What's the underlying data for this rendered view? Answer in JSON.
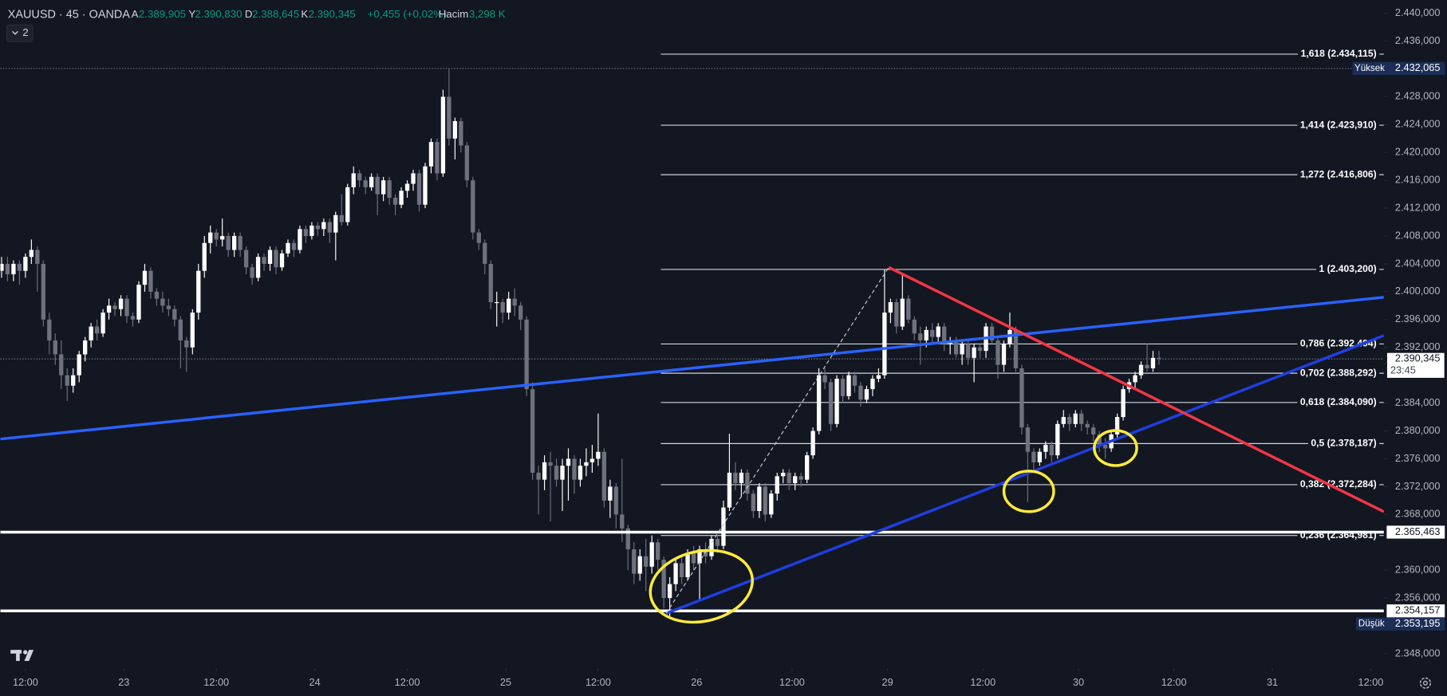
{
  "header": {
    "symbol": "XAUUSD · 45 · OANDA",
    "o_label": "A",
    "o": "2.389,905",
    "h_label": "Y",
    "h": "2.390,830",
    "l_label": "D",
    "l": "2.388,645",
    "c_label": "K",
    "c": "2.390,345",
    "change": "+0,455 (+0,02%)",
    "volume_label": "Hacim",
    "volume": "3,298 K",
    "indicators": "2"
  },
  "chart_data": {
    "type": "candlestick",
    "up_color": "#ffffff",
    "down_color": "#6f727d",
    "xlim": [
      -0.2,
      231.7
    ],
    "ylim": [
      2345.9,
      2441.9
    ],
    "grid": false,
    "xticks": [
      {
        "value": 4,
        "label": "12:00"
      },
      {
        "value": 20.5,
        "label": "23"
      },
      {
        "value": 36,
        "label": "12:00"
      },
      {
        "value": 52.5,
        "label": "24"
      },
      {
        "value": 68,
        "label": "12:00"
      },
      {
        "value": 84.5,
        "label": "25"
      },
      {
        "value": 100,
        "label": "12:00"
      },
      {
        "value": 116.5,
        "label": "26"
      },
      {
        "value": 132.5,
        "label": "12:00"
      },
      {
        "value": 148.5,
        "label": "29"
      },
      {
        "value": 164.5,
        "label": "12:00"
      },
      {
        "value": 180.5,
        "label": "30"
      },
      {
        "value": 196.5,
        "label": "12:00"
      },
      {
        "value": 213,
        "label": "31"
      },
      {
        "value": 229.5,
        "label": "12:00"
      }
    ],
    "yticks": [
      {
        "value": 2440,
        "label": "2.440,000"
      },
      {
        "value": 2436,
        "label": "2.436,000"
      },
      {
        "value": 2428,
        "label": "2.428,000"
      },
      {
        "value": 2424,
        "label": "2.424,000"
      },
      {
        "value": 2420,
        "label": "2.420,000"
      },
      {
        "value": 2416,
        "label": "2.416,000"
      },
      {
        "value": 2412,
        "label": "2.412,000"
      },
      {
        "value": 2408,
        "label": "2.408,000"
      },
      {
        "value": 2404,
        "label": "2.404,000"
      },
      {
        "value": 2400,
        "label": "2.400,000"
      },
      {
        "value": 2396,
        "label": "2.396,000"
      },
      {
        "value": 2392,
        "label": "2.392,000"
      },
      {
        "value": 2384,
        "label": "2.384,000"
      },
      {
        "value": 2380,
        "label": "2.380,000"
      },
      {
        "value": 2376,
        "label": "2.376,000"
      },
      {
        "value": 2372,
        "label": "2.372,000"
      },
      {
        "value": 2368,
        "label": "2.368,000"
      },
      {
        "value": 2360,
        "label": "2.360,000"
      },
      {
        "value": 2356,
        "label": "2.356,000"
      },
      {
        "value": 2348,
        "label": "2.348,000"
      }
    ],
    "ohlc": [
      [
        2403,
        2405,
        2402,
        2404
      ],
      [
        2404,
        2405,
        2401.5,
        2402.5
      ],
      [
        2402.5,
        2404.5,
        2401.5,
        2404
      ],
      [
        2404,
        2404.5,
        2401,
        2403
      ],
      [
        2403,
        2405.5,
        2402,
        2405
      ],
      [
        2405,
        2407.5,
        2404,
        2406
      ],
      [
        2406,
        2406.5,
        2400,
        2404
      ],
      [
        2404,
        2404.5,
        2395,
        2396
      ],
      [
        2396,
        2397,
        2391,
        2393
      ],
      [
        2393,
        2394,
        2389.5,
        2391
      ],
      [
        2391,
        2393,
        2386,
        2388
      ],
      [
        2388,
        2389,
        2384.3,
        2386.5
      ],
      [
        2386.5,
        2389,
        2385.5,
        2388
      ],
      [
        2388,
        2391.5,
        2387,
        2391
      ],
      [
        2391,
        2393.5,
        2390,
        2393
      ],
      [
        2393,
        2395.5,
        2392,
        2395
      ],
      [
        2395,
        2396,
        2393,
        2394
      ],
      [
        2394,
        2397.5,
        2393.5,
        2397
      ],
      [
        2397,
        2399,
        2396,
        2398
      ],
      [
        2398,
        2398.5,
        2396.5,
        2397.5
      ],
      [
        2397.5,
        2399.5,
        2396.5,
        2399
      ],
      [
        2399,
        2399.5,
        2395.5,
        2396.5
      ],
      [
        2396.5,
        2397,
        2395,
        2396
      ],
      [
        2396,
        2401.5,
        2395.5,
        2401
      ],
      [
        2401,
        2404,
        2400,
        2403
      ],
      [
        2403,
        2403.5,
        2399,
        2400
      ],
      [
        2400,
        2400.5,
        2398,
        2399
      ],
      [
        2399,
        2400,
        2397,
        2398
      ],
      [
        2398,
        2399,
        2396.5,
        2397.5
      ],
      [
        2397.5,
        2398,
        2395,
        2396
      ],
      [
        2396,
        2396.5,
        2389,
        2393
      ],
      [
        2393,
        2393.5,
        2388.5,
        2392
      ],
      [
        2392,
        2397.5,
        2391,
        2397
      ],
      [
        2397,
        2404,
        2396,
        2403
      ],
      [
        2403,
        2408,
        2402,
        2407
      ],
      [
        2407,
        2409.5,
        2405.5,
        2408.5
      ],
      [
        2408.5,
        2409,
        2406.5,
        2407.5
      ],
      [
        2407.5,
        2410.5,
        2406.5,
        2408
      ],
      [
        2408,
        2408.5,
        2405,
        2406
      ],
      [
        2406,
        2408.5,
        2405,
        2408
      ],
      [
        2408,
        2408.5,
        2405,
        2406
      ],
      [
        2406,
        2406.5,
        2402.5,
        2403.5
      ],
      [
        2403.5,
        2404,
        2401,
        2402
      ],
      [
        2402,
        2405.5,
        2401.5,
        2405
      ],
      [
        2405,
        2405.5,
        2403,
        2404
      ],
      [
        2404,
        2406.5,
        2403,
        2406
      ],
      [
        2406,
        2406.5,
        2402.5,
        2403.5
      ],
      [
        2403.5,
        2406,
        2403,
        2405.5
      ],
      [
        2405.5,
        2407.5,
        2405,
        2407
      ],
      [
        2407,
        2407.5,
        2405,
        2406
      ],
      [
        2406,
        2409.5,
        2405.5,
        2409
      ],
      [
        2409,
        2409.5,
        2407,
        2408
      ],
      [
        2408,
        2410,
        2407.5,
        2409.5
      ],
      [
        2409.5,
        2410,
        2408,
        2409
      ],
      [
        2409,
        2410.5,
        2408,
        2410
      ],
      [
        2410,
        2410.5,
        2407,
        2408.5
      ],
      [
        2408.5,
        2411.5,
        2404.5,
        2411
      ],
      [
        2411,
        2414,
        2409.5,
        2410
      ],
      [
        2410,
        2415.5,
        2409.5,
        2415
      ],
      [
        2415,
        2418,
        2414,
        2417
      ],
      [
        2417,
        2417.5,
        2415,
        2416
      ],
      [
        2416,
        2416.5,
        2414,
        2415
      ],
      [
        2415,
        2417,
        2414.5,
        2416.5
      ],
      [
        2416.5,
        2417,
        2411,
        2414
      ],
      [
        2414,
        2416.5,
        2413,
        2416
      ],
      [
        2416,
        2416.5,
        2412.5,
        2413.5
      ],
      [
        2413.5,
        2414,
        2411,
        2412.5
      ],
      [
        2412.5,
        2415,
        2412,
        2414.5
      ],
      [
        2414.5,
        2416,
        2413.5,
        2415.5
      ],
      [
        2415.5,
        2417.5,
        2414.5,
        2417
      ],
      [
        2417,
        2417.5,
        2411.5,
        2412.5
      ],
      [
        2412.5,
        2418.5,
        2412,
        2418
      ],
      [
        2418,
        2422,
        2417,
        2421.5
      ],
      [
        2421.5,
        2422,
        2416,
        2417
      ],
      [
        2417,
        2429,
        2416.5,
        2428
      ],
      [
        2428,
        2432.065,
        2421,
        2422
      ],
      [
        2422,
        2425,
        2419,
        2424.5
      ],
      [
        2424.5,
        2425,
        2420,
        2421
      ],
      [
        2421,
        2421.5,
        2415,
        2416
      ],
      [
        2416,
        2416.5,
        2407.5,
        2408.5
      ],
      [
        2408.5,
        2409,
        2406,
        2407
      ],
      [
        2407,
        2407.5,
        2402.5,
        2404
      ],
      [
        2404,
        2404.5,
        2397.5,
        2398.5
      ],
      [
        2398.5,
        2400,
        2395,
        2398.5
      ],
      [
        2398.5,
        2399,
        2395.5,
        2397
      ],
      [
        2397,
        2400,
        2396,
        2399
      ],
      [
        2399,
        2400.5,
        2396.5,
        2398
      ],
      [
        2398,
        2398.5,
        2394.5,
        2396
      ],
      [
        2396,
        2396.5,
        2385,
        2386
      ],
      [
        2386,
        2387,
        2373,
        2374
      ],
      [
        2374,
        2375,
        2368,
        2373
      ],
      [
        2373,
        2376.5,
        2371.5,
        2375.5
      ],
      [
        2375.5,
        2377,
        2367,
        2375
      ],
      [
        2375,
        2376,
        2372,
        2373
      ],
      [
        2373,
        2376,
        2368.5,
        2375
      ],
      [
        2375,
        2377.5,
        2370,
        2376
      ],
      [
        2376,
        2376.5,
        2371,
        2373
      ],
      [
        2373,
        2376,
        2372,
        2375
      ],
      [
        2375,
        2377.5,
        2373.5,
        2375.5
      ],
      [
        2375.5,
        2378,
        2374,
        2376
      ],
      [
        2376,
        2382.5,
        2375,
        2377
      ],
      [
        2377,
        2377.5,
        2369,
        2370
      ],
      [
        2370,
        2373,
        2367.5,
        2372
      ],
      [
        2372,
        2372.5,
        2366,
        2368
      ],
      [
        2368,
        2376,
        2364,
        2366
      ],
      [
        2366,
        2366.5,
        2360,
        2363
      ],
      [
        2363,
        2364,
        2358,
        2359.5
      ],
      [
        2359.5,
        2363,
        2358.5,
        2362
      ],
      [
        2362,
        2364.5,
        2357,
        2360.5
      ],
      [
        2360.5,
        2365,
        2359.5,
        2364
      ],
      [
        2364,
        2364.5,
        2360,
        2361.5
      ],
      [
        2361.5,
        2362,
        2354.5,
        2356
      ],
      [
        2356,
        2359,
        2353.195,
        2358
      ],
      [
        2358,
        2361.5,
        2357,
        2361
      ],
      [
        2361,
        2362,
        2358,
        2359
      ],
      [
        2359,
        2363,
        2358.5,
        2362.5
      ],
      [
        2362.5,
        2363.5,
        2360,
        2361
      ],
      [
        2361,
        2363.5,
        2355.5,
        2363
      ],
      [
        2363,
        2364,
        2361,
        2362
      ],
      [
        2362,
        2365,
        2361.5,
        2364.5
      ],
      [
        2364.5,
        2365,
        2362.5,
        2363.5
      ],
      [
        2363.5,
        2370,
        2363,
        2369
      ],
      [
        2369,
        2379.6,
        2368.5,
        2374
      ],
      [
        2374,
        2375.5,
        2371.5,
        2372.5
      ],
      [
        2372.5,
        2374.5,
        2370.5,
        2374
      ],
      [
        2374,
        2374.5,
        2370,
        2371
      ],
      [
        2371,
        2371.5,
        2367.5,
        2368.5
      ],
      [
        2368.5,
        2372.5,
        2367.5,
        2372
      ],
      [
        2372,
        2372.5,
        2367,
        2368
      ],
      [
        2368,
        2371.5,
        2367.5,
        2371
      ],
      [
        2371,
        2374,
        2370,
        2373.5
      ],
      [
        2373.5,
        2374.5,
        2372.5,
        2374
      ],
      [
        2374,
        2374.5,
        2371.5,
        2372.5
      ],
      [
        2372.5,
        2374,
        2371.5,
        2373.5
      ],
      [
        2373.5,
        2374,
        2372,
        2373
      ],
      [
        2373,
        2377,
        2372.5,
        2376.5
      ],
      [
        2376.5,
        2380.5,
        2376,
        2380
      ],
      [
        2380,
        2389,
        2379.5,
        2388
      ],
      [
        2388,
        2389,
        2386,
        2387
      ],
      [
        2387,
        2387.5,
        2380,
        2381
      ],
      [
        2381,
        2388,
        2380.5,
        2387.5
      ],
      [
        2387.5,
        2388,
        2384,
        2385
      ],
      [
        2385,
        2388.5,
        2384.5,
        2388
      ],
      [
        2388,
        2388.5,
        2385.5,
        2386.5
      ],
      [
        2386.5,
        2387,
        2383.5,
        2384.5
      ],
      [
        2384.5,
        2386.5,
        2384,
        2386
      ],
      [
        2386,
        2388,
        2385,
        2387.5
      ],
      [
        2387.5,
        2389,
        2387,
        2388
      ],
      [
        2388,
        2403.2,
        2387.5,
        2397
      ],
      [
        2397,
        2399,
        2395.5,
        2398.5
      ],
      [
        2398.5,
        2399,
        2394,
        2395
      ],
      [
        2395,
        2402.5,
        2394.5,
        2399
      ],
      [
        2399,
        2399.5,
        2395.5,
        2396
      ],
      [
        2396,
        2396.5,
        2393,
        2394
      ],
      [
        2394,
        2395,
        2389.5,
        2393
      ],
      [
        2393,
        2395,
        2392,
        2394.5
      ],
      [
        2394.5,
        2395.5,
        2392.5,
        2393.5
      ],
      [
        2393.5,
        2395.5,
        2392.5,
        2395
      ],
      [
        2395,
        2395.5,
        2391.5,
        2392.5
      ],
      [
        2392.5,
        2393.5,
        2391,
        2393
      ],
      [
        2393,
        2393.5,
        2390.5,
        2391
      ],
      [
        2391,
        2393,
        2389.5,
        2392.5
      ],
      [
        2392.5,
        2393,
        2389.5,
        2390.5
      ],
      [
        2390.5,
        2392.5,
        2387,
        2392
      ],
      [
        2392,
        2392.5,
        2390.5,
        2391.5
      ],
      [
        2391.5,
        2395.5,
        2390.5,
        2395
      ],
      [
        2395,
        2395.5,
        2392.5,
        2393
      ],
      [
        2393,
        2393.5,
        2387.5,
        2389.5
      ],
      [
        2389.5,
        2393,
        2388.5,
        2392.5
      ],
      [
        2392.5,
        2397,
        2392,
        2394.5
      ],
      [
        2394.5,
        2395,
        2388.5,
        2389
      ],
      [
        2389,
        2389.5,
        2379.5,
        2380.5
      ],
      [
        2380.5,
        2381,
        2369.8,
        2377
      ],
      [
        2377,
        2377.5,
        2374.5,
        2375.5
      ],
      [
        2375.5,
        2377.5,
        2375,
        2377
      ],
      [
        2377,
        2378.5,
        2376,
        2378
      ],
      [
        2378,
        2378.5,
        2375.5,
        2376.5
      ],
      [
        2376.5,
        2381.5,
        2376,
        2381
      ],
      [
        2381,
        2383,
        2380.5,
        2382
      ],
      [
        2382,
        2382.5,
        2380,
        2381
      ],
      [
        2381,
        2383,
        2380.5,
        2382.5
      ],
      [
        2382.5,
        2383,
        2380,
        2381
      ],
      [
        2381,
        2381.5,
        2379.5,
        2380.5
      ],
      [
        2380.5,
        2381,
        2378.5,
        2379.5
      ],
      [
        2379.5,
        2380,
        2377,
        2378
      ],
      [
        2378,
        2379,
        2376,
        2377.5
      ],
      [
        2377.5,
        2380,
        2377,
        2379.5
      ],
      [
        2379.5,
        2382.5,
        2379,
        2382
      ],
      [
        2382,
        2386.5,
        2381.5,
        2386
      ],
      [
        2386,
        2387.5,
        2385.5,
        2387
      ],
      [
        2387,
        2388.5,
        2386,
        2388
      ],
      [
        2388,
        2390,
        2387.5,
        2389.5
      ],
      [
        2389.5,
        2392.5,
        2388.5,
        2389
      ],
      [
        2389,
        2391.5,
        2388.5,
        2390.5
      ],
      [
        2390.5,
        2391.5,
        2389.5,
        2390.345
      ]
    ],
    "fib": {
      "x_start": 110.5,
      "color": "#d1d4dc",
      "levels": [
        {
          "value": 2434.115,
          "label": "1,618 (2.434,115)"
        },
        {
          "value": 2423.91,
          "label": "1,414 (2.423,910)"
        },
        {
          "value": 2416.806,
          "label": "1,272 (2.416,806)"
        },
        {
          "value": 2403.2,
          "label": "1 (2.403,200)"
        },
        {
          "value": 2392.494,
          "label": "0,786 (2.392,494)"
        },
        {
          "value": 2388.292,
          "label": "0,702 (2.388,292)"
        },
        {
          "value": 2384.09,
          "label": "0,618 (2.384,090)"
        },
        {
          "value": 2378.187,
          "label": "0,5 (2.378,187)"
        },
        {
          "value": 2372.284,
          "label": "0,382 (2.372,284)"
        },
        {
          "value": 2364.981,
          "label": "0,236 (2.364,981)"
        }
      ]
    },
    "price_lines": [
      {
        "value": 2365.463,
        "label": "2.365,463",
        "color": "#ffffff"
      },
      {
        "value": 2354.157,
        "label": "2.354,157",
        "color": "#ffffff"
      }
    ],
    "high": {
      "name": "Yüksek",
      "value": 2432.065,
      "label": "2.432,065"
    },
    "low": {
      "name": "Düşük",
      "value": 2353.195,
      "label": "2.353,195"
    },
    "last": {
      "value": 2390.345,
      "label": "2.390,345",
      "countdown": "23:45"
    },
    "trendlines": [
      {
        "color": "#2962ff",
        "x": [
          -0.2,
          231.7
        ],
        "y": [
          2378.84,
          2399.2
        ]
      },
      {
        "color": "#1f3fe0",
        "x": [
          111.4,
          231.7
        ],
        "y": [
          2353.8,
          2393.7
        ]
      },
      {
        "color": "#f23645",
        "x": [
          148.7,
          231.7
        ],
        "y": [
          2403.5,
          2368.4
        ]
      },
      {
        "color": "#c8cad0",
        "dash": true,
        "x": [
          111.4,
          148.7
        ],
        "y": [
          2353.8,
          2403.5
        ]
      }
    ]
  }
}
